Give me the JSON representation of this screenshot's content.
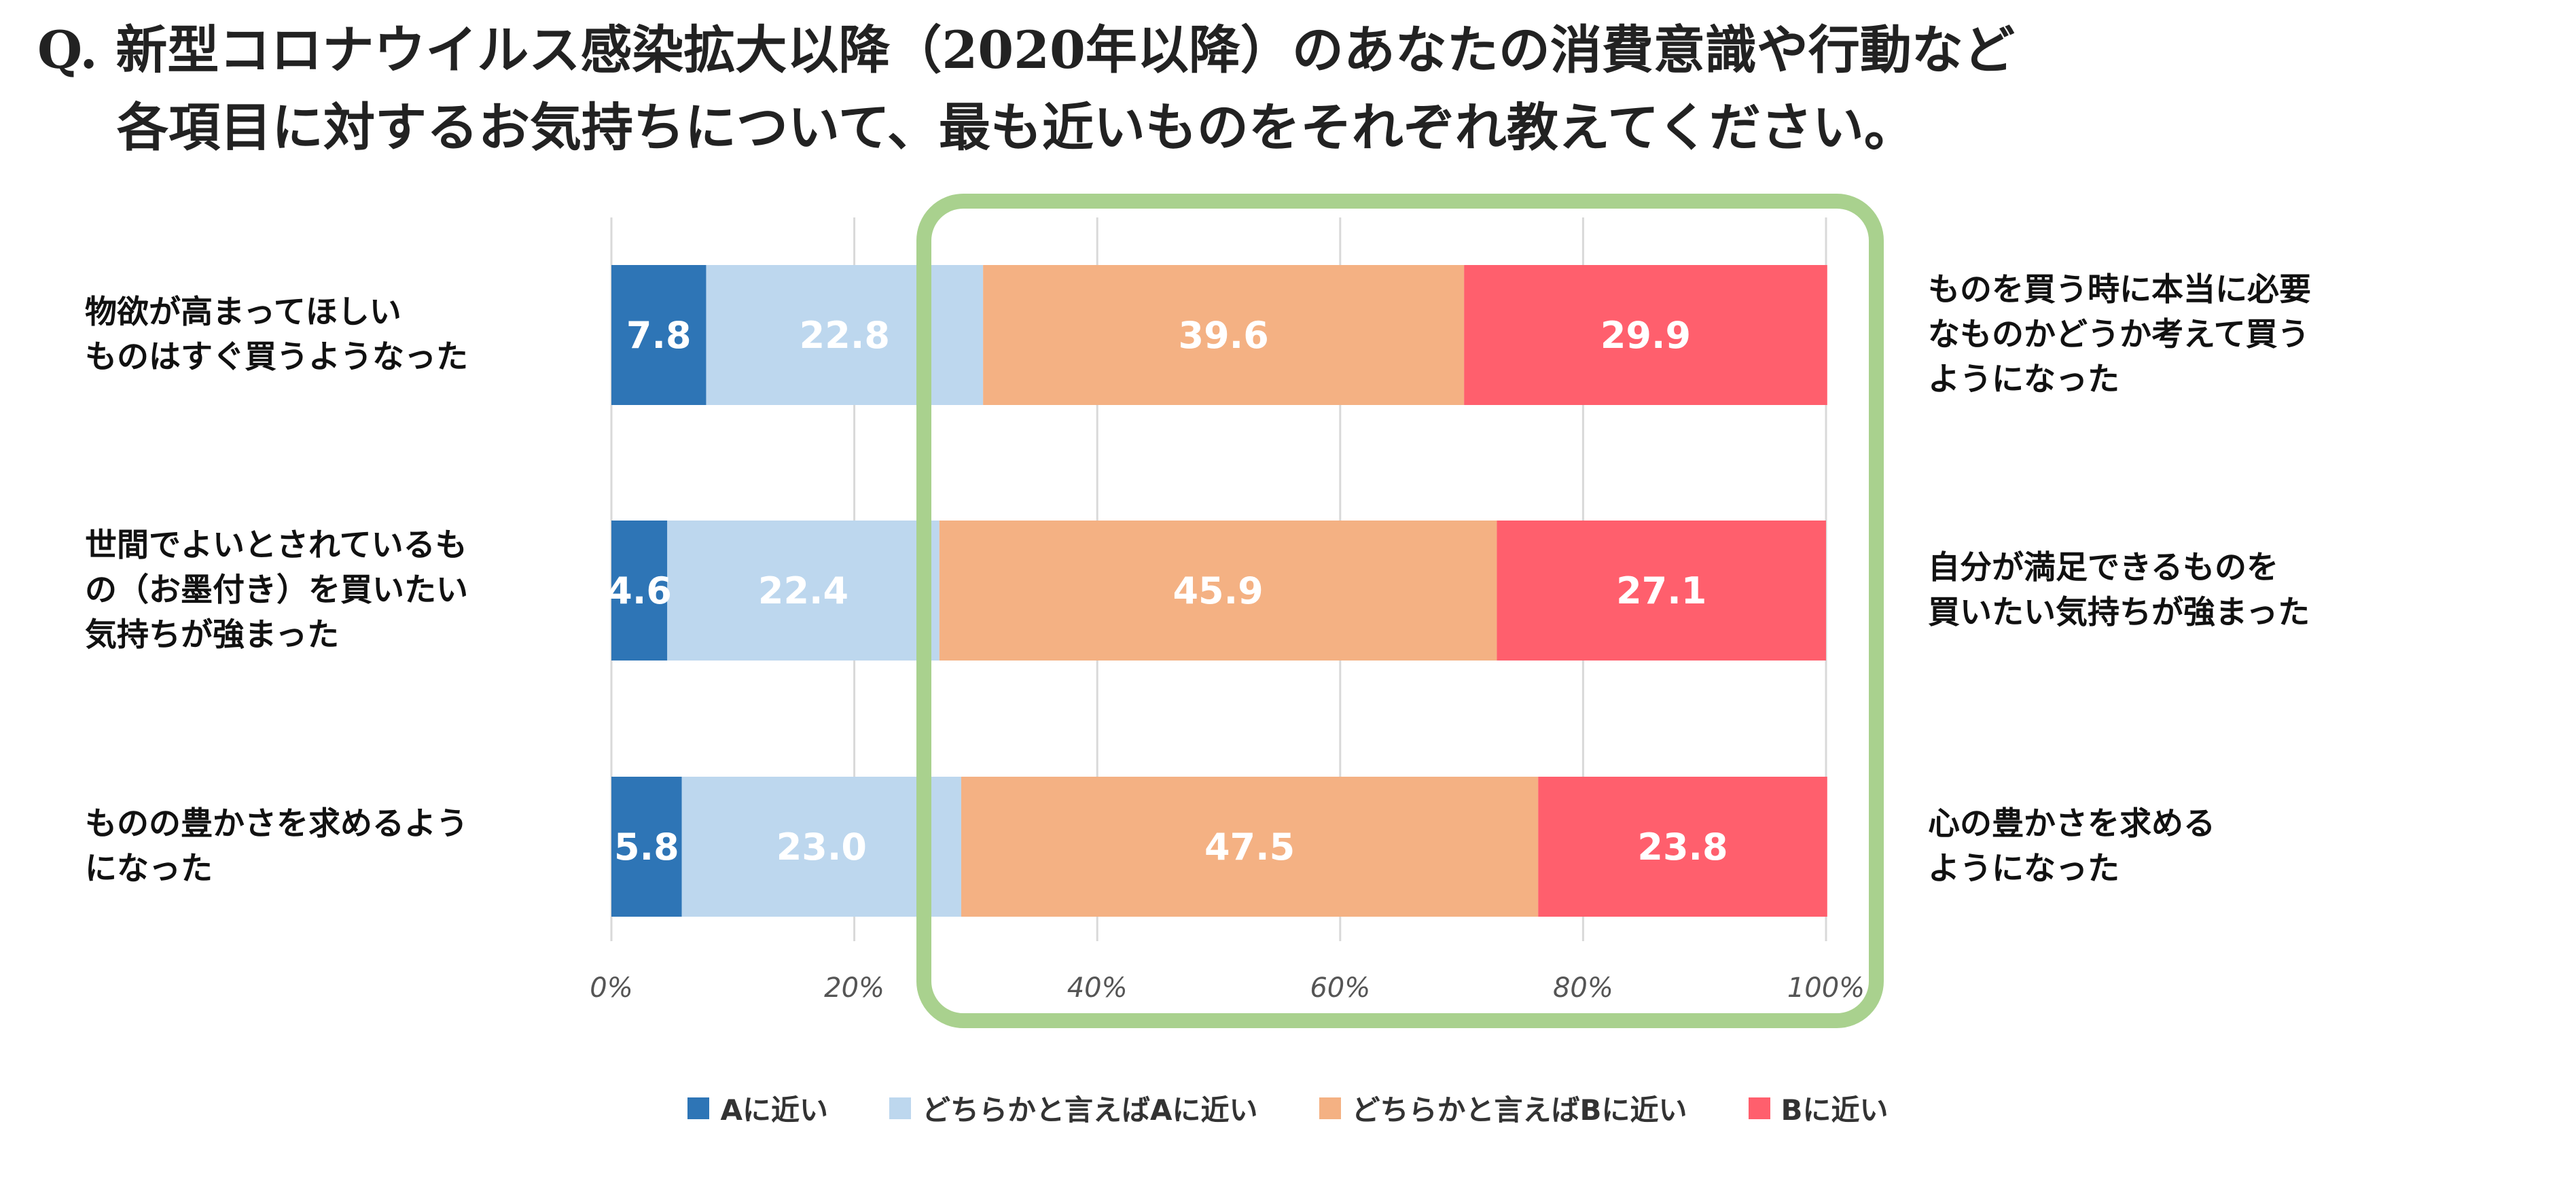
{
  "title": {
    "line1": "Q. 新型コロナウイルス感染拡大以降（2020年以降）のあなたの消費意識や行動など",
    "line2": "各項目に対するお気持ちについて、最も近いものをそれぞれ教えてください。"
  },
  "colors": {
    "a": "#2e75b6",
    "a_lean": "#bdd7ee",
    "b_lean": "#f4b183",
    "b": "#ff5f6d",
    "highlight": "#a9d18e",
    "grid": "#d9d9d9"
  },
  "legend": [
    {
      "label": "Aに近い",
      "color": "#2e75b6"
    },
    {
      "label": "どちらかと言えばAに近い",
      "color": "#bdd7ee"
    },
    {
      "label": "どちらかと言えばBに近い",
      "color": "#f4b183"
    },
    {
      "label": "Bに近い",
      "color": "#ff5f6d"
    }
  ],
  "chart_data": {
    "type": "bar",
    "orientation": "horizontal",
    "stacked": true,
    "percent_stacked": true,
    "xlim": [
      0,
      100
    ],
    "ticks": [
      "0%",
      "20%",
      "40%",
      "60%",
      "80%",
      "100%"
    ],
    "grid": true,
    "legend_position": "bottom",
    "categories": [
      {
        "a_label": [
          "物欲が高まってほしい",
          "ものはすぐ買うようなった"
        ],
        "b_label": [
          "ものを買う時に本当に必要",
          "なものかどうか考えて買う",
          "ようになった"
        ]
      },
      {
        "a_label": [
          "世間でよいとされているも",
          "の（お墨付き）を買いたい",
          "気持ちが強まった"
        ],
        "b_label": [
          "自分が満足できるものを",
          "買いたい気持ちが強まった"
        ]
      },
      {
        "a_label": [
          "ものの豊かさを求めるよう",
          "になった"
        ],
        "b_label": [
          "心の豊かさを求める",
          "ようになった"
        ]
      }
    ],
    "series": [
      {
        "name": "Aに近い",
        "values": [
          7.8,
          4.6,
          5.8
        ],
        "labels": [
          "7.8",
          "4.6",
          "5.8"
        ]
      },
      {
        "name": "どちらかと言えばAに近い",
        "values": [
          22.8,
          22.4,
          23.0
        ],
        "labels": [
          "22.8",
          "22.4",
          "23.0"
        ]
      },
      {
        "name": "どちらかと言えばBに近い",
        "values": [
          39.6,
          45.9,
          47.5
        ],
        "labels": [
          "39.6",
          "45.9",
          "47.5"
        ]
      },
      {
        "name": "Bに近い",
        "values": [
          29.9,
          27.1,
          23.8
        ],
        "labels": [
          "29.9",
          "27.1",
          "23.8"
        ]
      }
    ]
  }
}
